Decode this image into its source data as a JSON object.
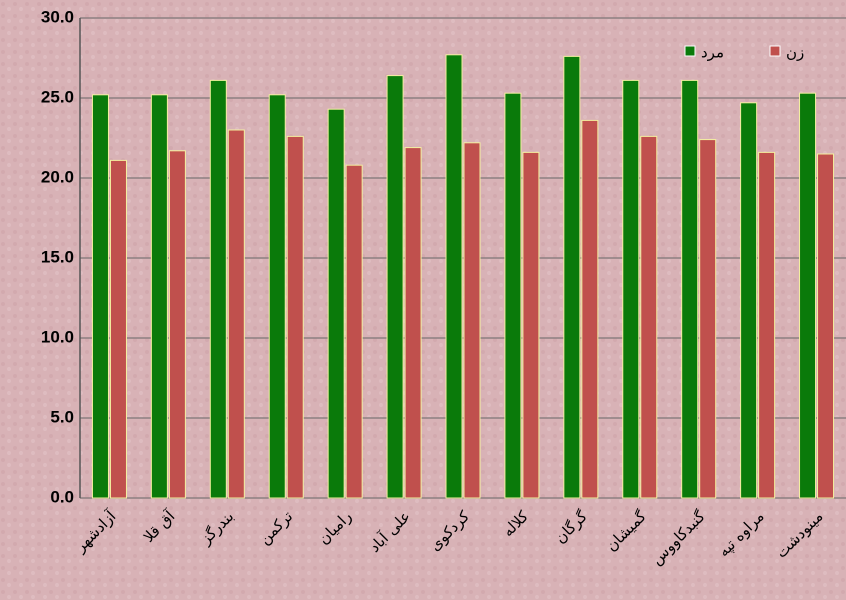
{
  "chart_data": {
    "type": "bar",
    "categories": [
      "آزادشهر",
      "آق قلا",
      "بندرگز",
      "ترکمن",
      "رامیان",
      "علی آباد",
      "کردکوی",
      "کلاله",
      "گرگان",
      "گمیشان",
      "گنبدکاووس",
      "مراوه تپه",
      "مینودشت"
    ],
    "series": [
      {
        "name": "مرد",
        "color": "#0a7a0a",
        "values": [
          25.2,
          25.2,
          26.1,
          25.2,
          24.3,
          26.4,
          27.7,
          25.3,
          27.6,
          26.1,
          26.1,
          24.7,
          25.3
        ]
      },
      {
        "name": "زن",
        "color": "#c0504d",
        "values": [
          21.1,
          21.7,
          23.0,
          22.6,
          20.8,
          21.9,
          22.2,
          21.6,
          23.6,
          22.6,
          22.4,
          21.6,
          21.5
        ]
      }
    ],
    "ylim": [
      0,
      30
    ],
    "yticks": [
      {
        "value": 0,
        "label": "0.0"
      },
      {
        "value": 5,
        "label": "5.0"
      },
      {
        "value": 10,
        "label": "10.0"
      },
      {
        "value": 15,
        "label": "15.0"
      },
      {
        "value": 20,
        "label": "20.0"
      },
      {
        "value": 25,
        "label": "25.0"
      },
      {
        "value": 30,
        "label": "30.0"
      }
    ],
    "grid": true,
    "legend": "top-right"
  }
}
